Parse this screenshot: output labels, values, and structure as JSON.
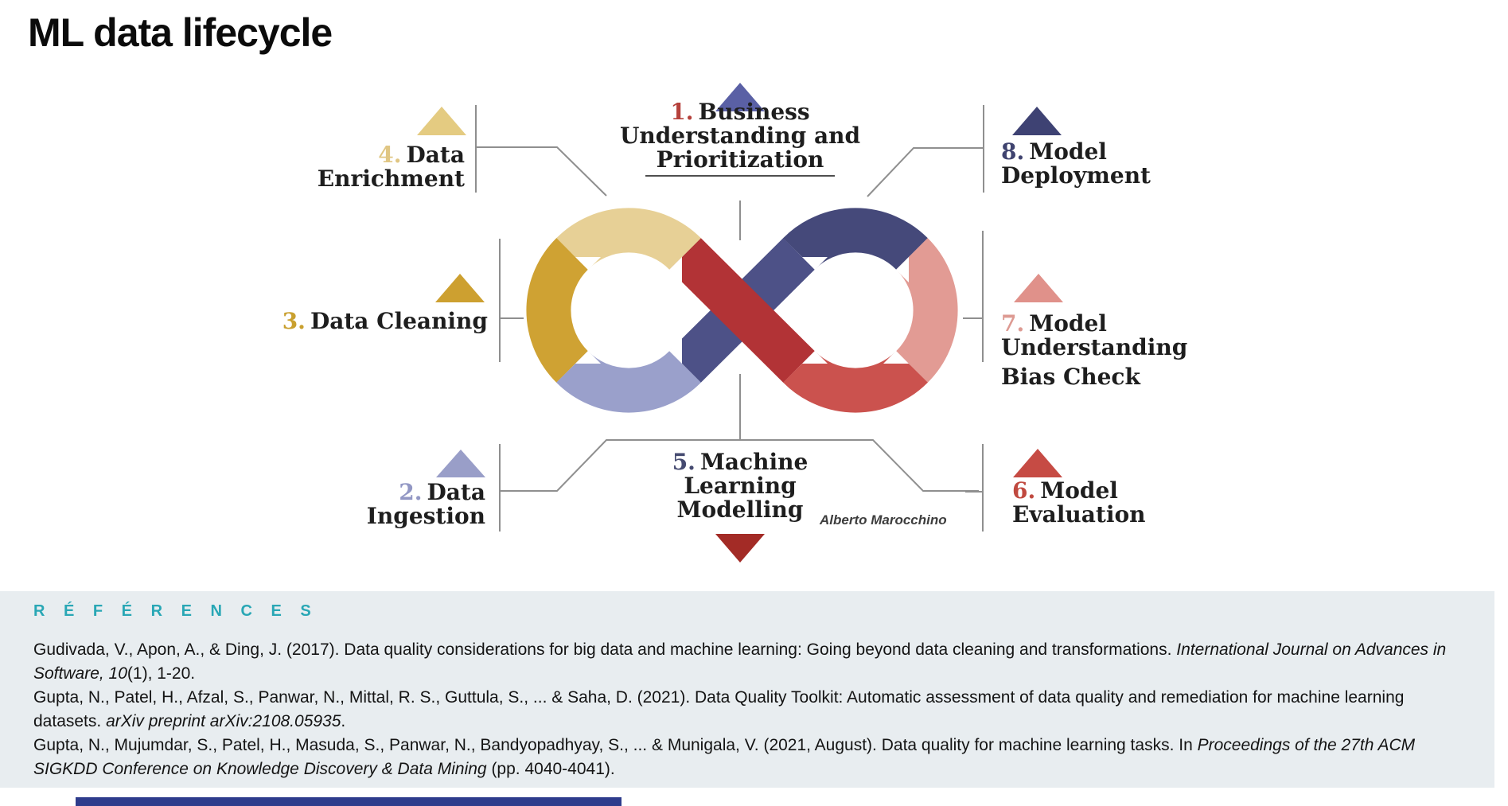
{
  "page": {
    "title": "ML data lifecycle",
    "accent_bar_color": "#2e3c8c"
  },
  "diagram": {
    "attribution": "Alberto Marocchino",
    "palette": {
      "tan": "#e7d096",
      "gold": "#cfa233",
      "periwinkle": "#9aa0cb",
      "navy": "#45497a",
      "navy_band": "#4d5187",
      "salmon": "#e29b94",
      "red": "#cb524e",
      "red_band": "#b23336",
      "connector": "#8f8f8f",
      "arrow_white": "#ffffff"
    },
    "stages": [
      {
        "number": "1.",
        "number_color": "#b5413c",
        "triangle_color": "#5a60a5",
        "lines": [
          "Business",
          "Understanding and",
          "Prioritization"
        ]
      },
      {
        "number": "2.",
        "number_color": "#9297c4",
        "triangle_color": "#999ec8",
        "lines": [
          "Data",
          "Ingestion"
        ]
      },
      {
        "number": "3.",
        "number_color": "#c9a02f",
        "triangle_color": "#cda030",
        "lines": [
          "Data Cleaning"
        ]
      },
      {
        "number": "4.",
        "number_color": "#e0c683",
        "triangle_color": "#e4cb81",
        "lines": [
          "Data",
          "Enrichment"
        ]
      },
      {
        "number": "5.",
        "number_color": "#454a70",
        "triangle_color": "#a32b26",
        "lines": [
          "Machine",
          "Learning",
          "Modelling"
        ]
      },
      {
        "number": "6.",
        "number_color": "#c0493f",
        "triangle_color": "#c64b44",
        "lines": [
          "Model",
          "Evaluation"
        ]
      },
      {
        "number": "7.",
        "number_color": "#dd9a92",
        "triangle_color": "#e0918a",
        "lines": [
          "Model",
          "Understanding",
          "Bias Check"
        ]
      },
      {
        "number": "8.",
        "number_color": "#3f436f",
        "triangle_color": "#3e4273",
        "lines": [
          "Model",
          "Deployment"
        ]
      }
    ]
  },
  "references": {
    "heading": "R É F É R E N C E S",
    "accent_color": "#29a7b5",
    "items": [
      {
        "segments": [
          {
            "text": "Gudivada, V., Apon, A., & Ding, J. (2017). Data quality considerations for big data and machine learning: Going beyond data cleaning and transformations. ",
            "italic": false
          },
          {
            "text": "International Journal on Advances in Software, 10",
            "italic": true
          },
          {
            "text": "(1), 1-20.",
            "italic": false
          }
        ]
      },
      {
        "segments": [
          {
            "text": "Gupta, N., Patel, H., Afzal, S., Panwar, N., Mittal, R. S., Guttula, S., ... & Saha, D. (2021). Data Quality Toolkit: Automatic assessment of data quality and remediation for machine learning datasets. ",
            "italic": false
          },
          {
            "text": "arXiv preprint arXiv:2108.05935",
            "italic": true
          },
          {
            "text": ".",
            "italic": false
          }
        ]
      },
      {
        "segments": [
          {
            "text": "Gupta, N., Mujumdar, S., Patel, H., Masuda, S., Panwar, N., Bandyopadhyay, S., ... & Munigala, V. (2021, August). Data quality for machine learning tasks. In ",
            "italic": false
          },
          {
            "text": "Proceedings of the 27th ACM SIGKDD Conference on Knowledge Discovery & Data Mining",
            "italic": true
          },
          {
            "text": " (pp. 4040-4041).",
            "italic": false
          }
        ]
      }
    ]
  }
}
